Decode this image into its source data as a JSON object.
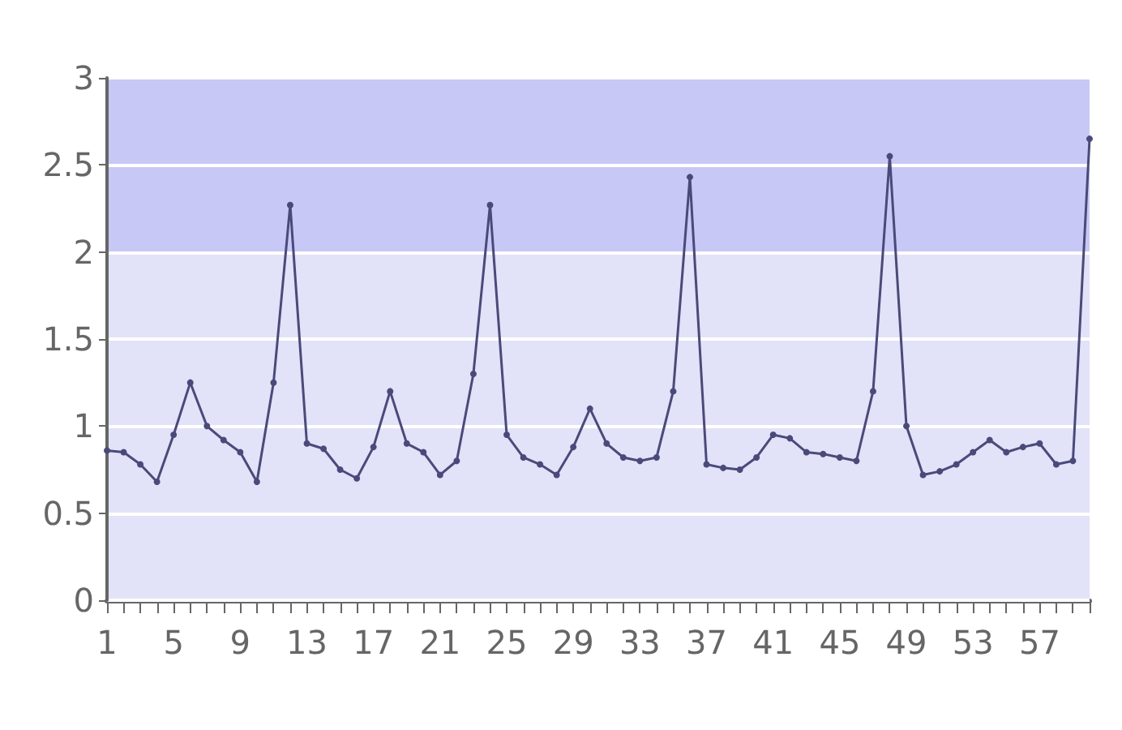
{
  "chart_data": {
    "type": "line",
    "categories": [
      "1",
      null,
      null,
      null,
      "5",
      null,
      null,
      null,
      "9",
      null,
      null,
      null,
      "13",
      null,
      null,
      null,
      "17",
      null,
      null,
      null,
      "21",
      null,
      null,
      null,
      "25",
      null,
      null,
      null,
      "29",
      null,
      null,
      null,
      "33",
      null,
      null,
      null,
      "37",
      null,
      null,
      null,
      "41",
      null,
      null,
      null,
      "45",
      null,
      null,
      null,
      "49",
      null,
      null,
      null,
      "53",
      null,
      null,
      null,
      "57",
      null,
      null,
      null
    ],
    "series": [
      {
        "color": "#4a4a7a",
        "values": [
          0.86,
          0.85,
          0.78,
          0.68,
          0.95,
          1.25,
          1.0,
          0.92,
          0.85,
          0.68,
          1.25,
          2.27,
          0.9,
          0.87,
          0.75,
          0.7,
          0.88,
          1.2,
          0.9,
          0.85,
          0.72,
          0.8,
          1.3,
          2.27,
          0.95,
          0.82,
          0.78,
          0.72,
          0.88,
          1.1,
          0.9,
          0.82,
          0.8,
          0.82,
          1.2,
          2.43,
          0.78,
          0.76,
          0.75,
          0.82,
          0.95,
          0.93,
          0.85,
          0.84,
          0.82,
          0.8,
          1.2,
          2.55,
          1.0,
          0.72,
          0.74,
          0.78,
          0.85,
          0.92,
          0.85,
          0.88,
          0.9,
          0.78,
          0.8,
          2.65
        ]
      }
    ],
    "ylim": [
      0,
      3
    ],
    "yticks": [
      0,
      0.5,
      1,
      1.5,
      2,
      2.5,
      3
    ],
    "bands": [
      {
        "axis": "y",
        "from": 2,
        "to": 3,
        "color": "#c8c8f6"
      },
      {
        "axis": "y",
        "from": 0,
        "to": 2,
        "color": "#e2e2f8"
      }
    ],
    "grid": "y",
    "marker": "circle",
    "line_style": "solid"
  }
}
